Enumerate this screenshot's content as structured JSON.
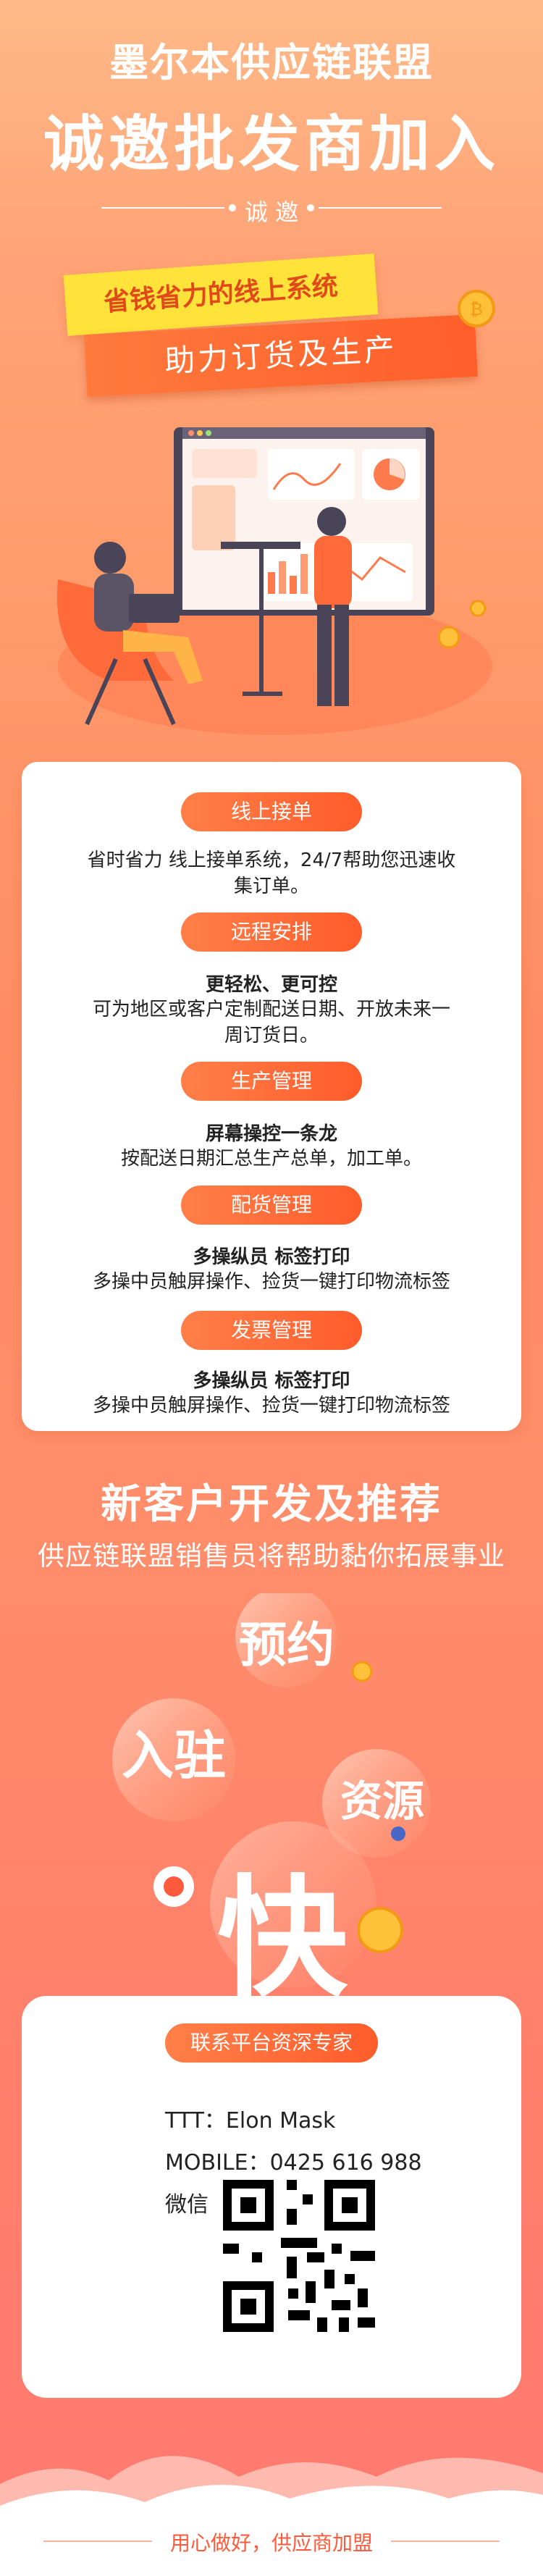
{
  "header": {
    "title": "墨尔本供应链联盟",
    "subtitle": "诚邀批发商加入",
    "invite": "诚 邀",
    "banner_yellow": "省钱省力的线上系统",
    "banner_orange": "助力订货及生产"
  },
  "features": [
    {
      "pill": "线上接单",
      "title": "",
      "body": [
        "省时省力 线上接单系统，24/7帮助您迅速收",
        "集订单。"
      ]
    },
    {
      "pill": "远程安排",
      "title": "更轻松、更可控",
      "body": [
        "可为地区或客户定制配送日期、开放未来一",
        "周订货日。"
      ]
    },
    {
      "pill": "生产管理",
      "title": "屏幕操控一条龙",
      "body": [
        "按配送日期汇总生产总单，加工单。"
      ]
    },
    {
      "pill": "配货管理",
      "title": "多操纵员 标签打印",
      "body": [
        "多操中员触屏操作、捡货一键打印物流标签"
      ]
    },
    {
      "pill": "发票管理",
      "title": "多操纵员 标签打印",
      "body": [
        "多操中员触屏操作、捡货一键打印物流标签"
      ]
    }
  ],
  "promo": {
    "title": "新客户开发及推荐",
    "subtitle": "供应链联盟销售员将帮助黏你拓展事业",
    "bubbles": [
      "预约",
      "入驻",
      "资源",
      "快"
    ]
  },
  "contact": {
    "pill": "联系平台资深专家",
    "ttt": "TTT：Elon Mask",
    "mobile": "MOBILE：0425 616 988",
    "wechat": "微信"
  },
  "footer": {
    "text": "用心做好，供应商加盟"
  },
  "colors": {
    "accent": "#ff5c2b",
    "banner_yellow": "#ffe23a",
    "footer_text": "#ff5a3c"
  }
}
